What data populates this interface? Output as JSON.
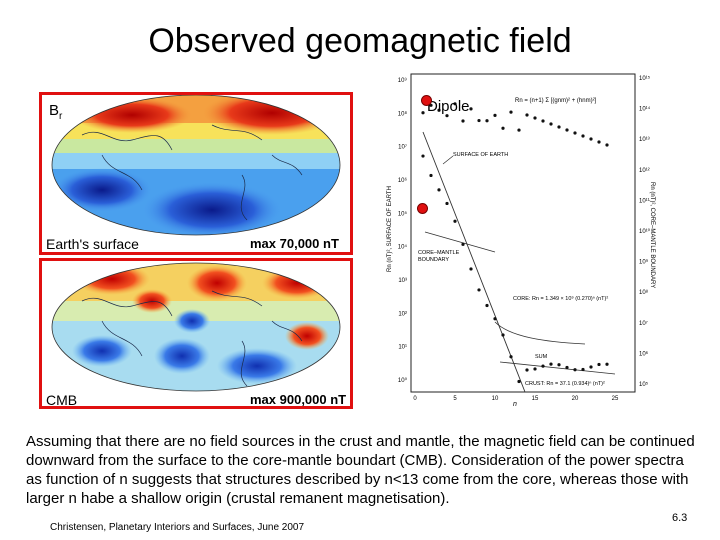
{
  "slide": {
    "title": "Observed geomagnetic field",
    "panel_top": {
      "label_symbol": "B",
      "label_subscript": "r",
      "caption": "Earth's surface",
      "max_label": "max 70,000 nT"
    },
    "panel_bottom": {
      "caption": "CMB",
      "max_label": "max 900,000 nT"
    },
    "dipole_label": "Dipole",
    "graph": {
      "formula": "Rn = (n+1) Σ [(gnm)² + (hnm)²]",
      "left_axis_title": "Rn (nT)², SURFACE OF EARTH",
      "right_axis_title": "Rn (nT)², CORE–MANTLE BOUNDARY",
      "surface_label": "SURFACE OF EARTH",
      "cmb_label": "CORE–MANTLE",
      "cmb_label_2": "BOUNDARY",
      "core_fit": "CORE: Rn = 1.349 × 10⁹ (0.270)ⁿ (nT)²",
      "crust_fit": "CRUST: Rn = 37.1 (0.934)ⁿ (nT)²",
      "sum_label": "SUM",
      "x_axis_label": "n",
      "x_ticks": [
        "0",
        "5",
        "10",
        "15",
        "20",
        "25"
      ],
      "left_ticks": [
        "10⁹",
        "10⁸",
        "10⁷",
        "10⁶",
        "10⁵",
        "10⁴",
        "10³",
        "10²",
        "10¹",
        "10⁰"
      ],
      "right_ticks": [
        "10¹⁵",
        "10¹⁴",
        "10¹³",
        "10¹²",
        "10¹¹",
        "10¹⁰",
        "10⁹",
        "10⁸",
        "10⁷",
        "10⁶",
        "10⁵"
      ]
    },
    "body_text": "Assuming that there are no field sources in the crust and mantle, the magnetic field can be continued downward from the surface to the core-mantle boundart (CMB). Consideration of the power spectra as function of n suggests that structures described by n<13 come from the core, whereas those with larger n habe a shallow origin (crustal remanent magnetisation).",
    "citation": "Christensen, Planetary Interiors and Surfaces, June 2007",
    "page_number": "6.3",
    "colors": {
      "accent_red": "#e01010"
    }
  }
}
